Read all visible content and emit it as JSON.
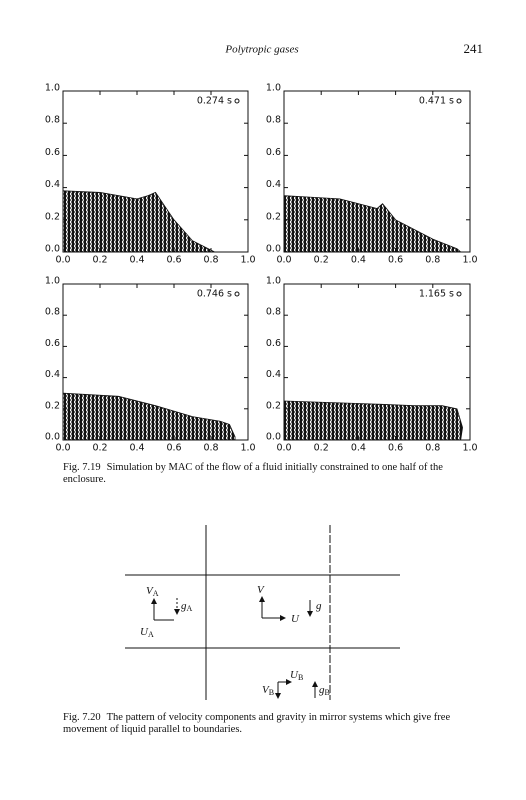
{
  "header": {
    "title": "Polytropic gases",
    "page_number": "241"
  },
  "figure_1": {
    "xtick_labels": [
      "0.0",
      "0.2",
      "0.4",
      "0.6",
      "0.8",
      "1.0"
    ],
    "ytick_labels": [
      "0.0",
      "0.2",
      "0.4",
      "0.6",
      "0.8",
      "1.0"
    ],
    "panels": [
      {
        "time_label": "0.274 s"
      },
      {
        "time_label": "0.471 s"
      },
      {
        "time_label": "0.746 s"
      },
      {
        "time_label": "1.165 s"
      }
    ],
    "caption": {
      "label": "Fig. 7.19",
      "text": "Simulation by MAC of the flow of a fluid initially constrained to one half of the enclosure."
    }
  },
  "figure_2": {
    "labels": [
      {
        "main": "V",
        "sub": "A"
      },
      {
        "main": "g",
        "sub": "A"
      },
      {
        "main": "U",
        "sub": "A"
      },
      {
        "main": "V"
      },
      {
        "main": "g"
      },
      {
        "main": "U"
      },
      {
        "main": "U",
        "sub": "B"
      },
      {
        "main": "V",
        "sub": "B"
      },
      {
        "main": "g",
        "sub": "B"
      }
    ],
    "caption": {
      "label": "Fig. 7.20",
      "text": "The pattern of velocity components and gravity in mirror systems which give free movement of liquid parallel to boundaries."
    }
  }
}
